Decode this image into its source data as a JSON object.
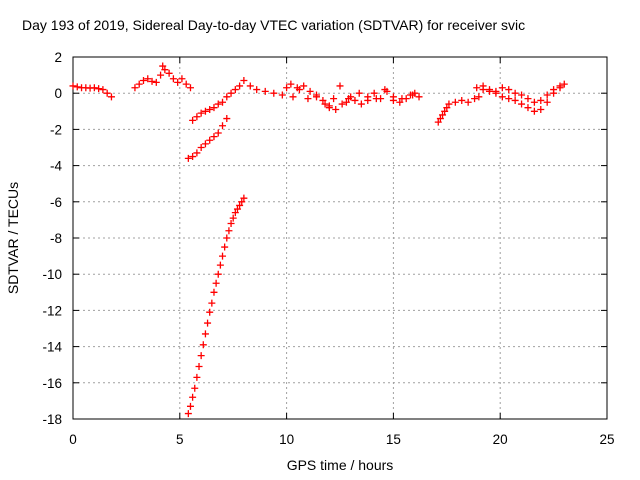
{
  "chart_data": {
    "type": "scatter",
    "title": "Day 193 of 2019, Sidereal Day-to-day VTEC variation (SDTVAR) for receiver svic",
    "xlabel": "GPS time / hours",
    "ylabel": "SDTVAR / TECUs",
    "xlim": [
      0,
      25
    ],
    "ylim": [
      -18,
      2
    ],
    "xticks": [
      "0",
      "5",
      "10",
      "15",
      "20",
      "25"
    ],
    "yticks": [
      "2",
      "0",
      "-2",
      "-4",
      "-6",
      "-8",
      "-10",
      "-12",
      "-14",
      "-16",
      "-18"
    ],
    "grid": true,
    "marker": "plus",
    "color": "#ff0000",
    "series": [
      {
        "x": [
          0.0,
          0.2,
          0.4,
          0.6,
          0.8,
          1.0,
          1.2,
          1.4,
          1.6,
          1.8
        ],
        "y": [
          0.4,
          0.35,
          0.3,
          0.3,
          0.28,
          0.3,
          0.25,
          0.2,
          0.0,
          -0.2
        ]
      },
      {
        "x": [
          2.9,
          3.1,
          3.3,
          3.5,
          3.7,
          3.9,
          4.1,
          4.2,
          4.3,
          4.5,
          4.7,
          4.9,
          5.1,
          5.3,
          5.5
        ],
        "y": [
          0.3,
          0.5,
          0.7,
          0.8,
          0.65,
          0.6,
          1.0,
          1.5,
          1.3,
          1.1,
          0.8,
          0.6,
          0.8,
          0.5,
          0.3
        ]
      },
      {
        "x": [
          5.6,
          5.8,
          6.0,
          6.2,
          6.4,
          6.6,
          6.8,
          7.0,
          7.2,
          7.4,
          7.6,
          7.8
        ],
        "y": [
          -1.5,
          -1.3,
          -1.1,
          -1.0,
          -0.9,
          -0.8,
          -0.6,
          -0.5,
          -0.2,
          0.0,
          0.2,
          0.4
        ]
      },
      {
        "x": [
          5.4,
          5.6,
          5.8,
          6.0,
          6.2,
          6.4,
          6.6,
          6.8,
          7.0,
          7.2
        ],
        "y": [
          -3.6,
          -3.5,
          -3.3,
          -3.0,
          -2.8,
          -2.6,
          -2.4,
          -2.2,
          -1.8,
          -1.4
        ]
      },
      {
        "x": [
          5.4,
          5.5,
          5.6,
          5.7,
          5.8,
          5.9,
          6.0,
          6.1,
          6.2,
          6.3,
          6.4,
          6.5,
          6.6,
          6.7,
          6.8,
          6.9,
          7.0,
          7.1,
          7.2,
          7.3,
          7.4,
          7.5,
          7.6,
          7.7,
          7.8,
          7.9,
          8.0
        ],
        "y": [
          -17.7,
          -17.3,
          -16.8,
          -16.3,
          -15.7,
          -15.1,
          -14.5,
          -13.9,
          -13.3,
          -12.7,
          -12.1,
          -11.6,
          -11.0,
          -10.5,
          -10.0,
          -9.5,
          -9.0,
          -8.5,
          -8.0,
          -7.6,
          -7.2,
          -6.9,
          -6.6,
          -6.4,
          -6.2,
          -6.0,
          -5.8
        ]
      },
      {
        "x": [
          8.0,
          8.3,
          8.6,
          9.0,
          9.4,
          9.8,
          10.0,
          10.3,
          10.6,
          11.0,
          11.4,
          11.8,
          12.0,
          12.2,
          12.5,
          12.8,
          13.0,
          13.4,
          13.8,
          14.2,
          14.6,
          15.0,
          15.4,
          15.8,
          16.0,
          16.2
        ],
        "y": [
          0.7,
          0.4,
          0.2,
          0.1,
          0.0,
          -0.1,
          0.3,
          -0.2,
          0.2,
          -0.3,
          -0.1,
          -0.6,
          -0.8,
          -0.3,
          0.4,
          -0.5,
          -0.2,
          0.0,
          -0.4,
          -0.3,
          0.2,
          -0.4,
          -0.3,
          -0.1,
          0.0,
          -0.2
        ]
      },
      {
        "x": [
          10.2,
          10.5,
          10.8,
          11.1,
          11.4,
          11.7,
          12.0,
          12.3,
          12.6,
          12.9,
          13.2,
          13.5,
          13.8,
          14.1,
          14.4,
          14.7,
          15.0,
          15.3,
          15.6,
          15.9
        ],
        "y": [
          0.5,
          0.3,
          0.4,
          0.1,
          -0.2,
          -0.4,
          -0.7,
          -0.9,
          -0.6,
          -0.3,
          -0.4,
          -0.6,
          -0.2,
          0.0,
          -0.3,
          0.1,
          -0.2,
          -0.5,
          -0.3,
          -0.1
        ]
      },
      {
        "x": [
          17.1,
          17.2,
          17.3,
          17.4,
          17.5
        ],
        "y": [
          -1.6,
          -1.4,
          -1.2,
          -1.0,
          -0.8
        ]
      },
      {
        "x": [
          17.6,
          17.9,
          18.2,
          18.5,
          18.8,
          19.0,
          19.2,
          19.5,
          19.8,
          20.1,
          20.4,
          20.7,
          21.0,
          21.3,
          21.6,
          21.9,
          22.2,
          22.5,
          22.8,
          23.0
        ],
        "y": [
          -0.6,
          -0.5,
          -0.4,
          -0.5,
          -0.3,
          -0.2,
          0.2,
          0.1,
          0.0,
          -0.2,
          -0.3,
          -0.4,
          -0.6,
          -0.8,
          -1.0,
          -0.9,
          -0.5,
          0.0,
          0.3,
          0.5
        ]
      },
      {
        "x": [
          18.9,
          19.2,
          19.5,
          19.8,
          20.1,
          20.4,
          20.7,
          21.0,
          21.3,
          21.6,
          21.9,
          22.2,
          22.5,
          22.8
        ],
        "y": [
          0.3,
          0.4,
          0.2,
          0.1,
          0.3,
          0.2,
          0.0,
          -0.1,
          -0.3,
          -0.5,
          -0.4,
          -0.1,
          0.2,
          0.4
        ]
      }
    ]
  }
}
